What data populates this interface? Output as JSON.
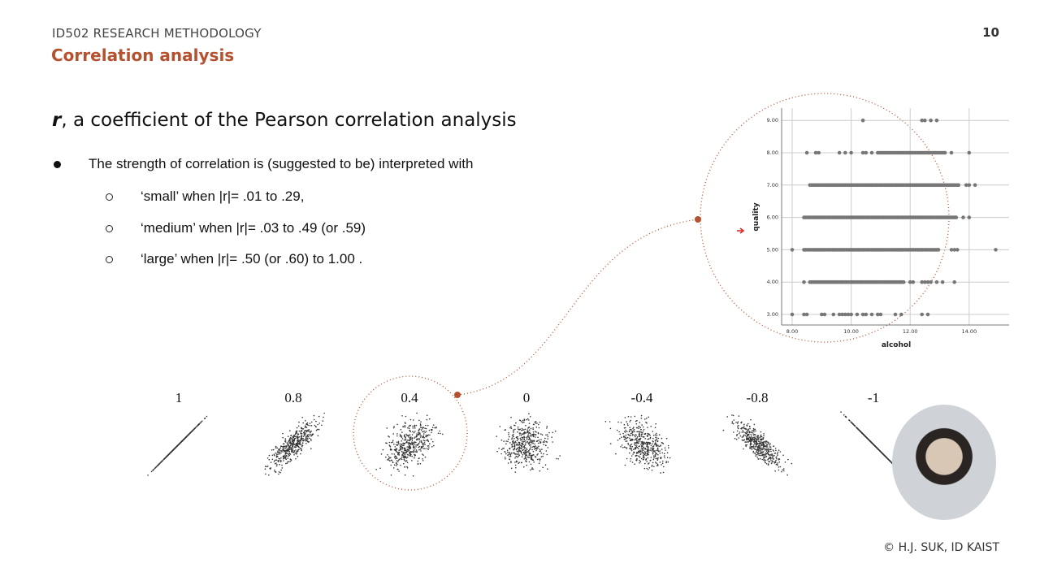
{
  "header": {
    "course": "ID502 RESEARCH METHODOLOGY",
    "section": "Correlation analysis",
    "page_number": "10"
  },
  "heading": {
    "symbol": "r",
    "rest": ", a coefficient of the Pearson correlation analysis"
  },
  "bullet": {
    "text": "The strength of correlation is (suggested to be) interpreted with",
    "items": [
      {
        "text": "‘small’ when |r|= .01 to .29,"
      },
      {
        "text": "‘medium’ when |r|= .03 to .49 (or .59)"
      },
      {
        "text": "‘large’ when |r|= .50 (or .60) to 1.00 ."
      }
    ]
  },
  "accent_color": "#b5512e",
  "footer": {
    "copyright": "© H.J. SUK, ID KAIST"
  },
  "chart_data": [
    {
      "type": "scatter",
      "title": "",
      "panels": [
        {
          "label": "1",
          "r": 1
        },
        {
          "label": "0.8",
          "r": 0.8
        },
        {
          "label": "0.4",
          "r": 0.4,
          "highlighted": true
        },
        {
          "label": "0",
          "r": 0
        },
        {
          "label": "-0.4",
          "r": -0.4
        },
        {
          "label": "-0.8",
          "r": -0.8
        },
        {
          "label": "-1",
          "r": -1
        }
      ]
    },
    {
      "type": "scatter",
      "xlabel": "alcohol",
      "ylabel": "quality",
      "xlim": [
        7.6,
        15.3
      ],
      "ylim": [
        2.7,
        9.3
      ],
      "xticks": [
        "8.00",
        "10.00",
        "12.00",
        "14.00"
      ],
      "yticks": [
        "3.00",
        "4.00",
        "5.00",
        "6.00",
        "7.00",
        "8.00",
        "9.00"
      ],
      "grid": true,
      "rows": [
        {
          "y": 9,
          "points": [
            10.4,
            12.4,
            12.5,
            12.7,
            12.9
          ]
        },
        {
          "y": 8,
          "points": [
            8.5,
            8.8,
            8.9,
            9.6,
            9.8,
            10.0,
            10.4,
            10.5,
            10.7
          ],
          "range": [
            10.9,
            13.2
          ],
          "extra": [
            13.4,
            14.0
          ]
        },
        {
          "y": 7,
          "range": [
            8.6,
            13.7
          ],
          "extra": [
            13.9,
            14.0,
            14.2
          ]
        },
        {
          "y": 6,
          "range": [
            8.4,
            13.6
          ],
          "extra": [
            13.8,
            14.0
          ]
        },
        {
          "y": 5,
          "points": [
            8.0,
            14.9
          ],
          "range": [
            8.4,
            13.0
          ],
          "extra": [
            13.4,
            13.5,
            13.6
          ]
        },
        {
          "y": 4,
          "points": [
            8.4
          ],
          "range": [
            8.6,
            11.8
          ],
          "extra": [
            12.0,
            12.1,
            12.4,
            12.5,
            12.6,
            12.7,
            12.9,
            13.1,
            13.5
          ]
        },
        {
          "y": 3,
          "points": [
            8.0,
            8.4,
            8.5,
            9.0,
            9.1,
            9.4,
            9.6,
            9.7,
            9.8,
            9.9,
            10.0,
            10.2,
            10.4,
            10.5,
            10.7,
            10.9,
            11.0,
            11.5,
            11.7,
            12.4,
            12.6
          ]
        }
      ]
    }
  ]
}
